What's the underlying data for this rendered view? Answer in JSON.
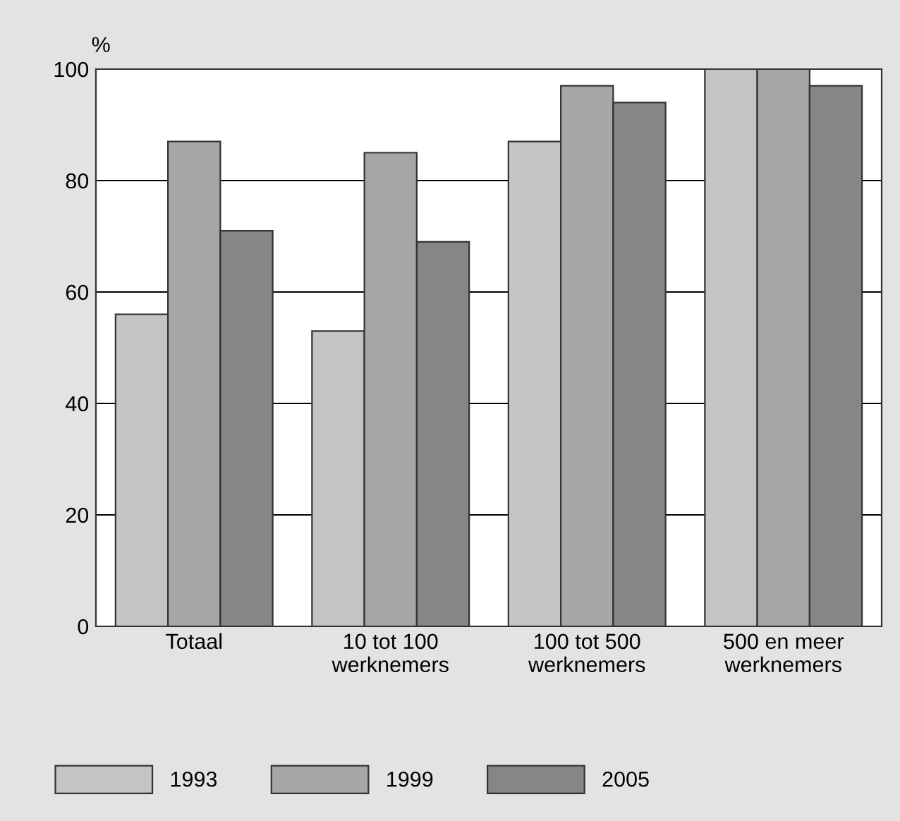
{
  "chart_data": {
    "type": "bar",
    "ylabel": "%",
    "categories": [
      "Totaal",
      "10 tot 100\nwerknemers",
      "100 tot 500\nwerknemers",
      "500 en meer\nwerknemers"
    ],
    "series": [
      {
        "name": "1993",
        "color": "#c4c4c4",
        "values": [
          56,
          53,
          87,
          100
        ]
      },
      {
        "name": "1999",
        "color": "#a6a6a6",
        "values": [
          87,
          85,
          97,
          100
        ]
      },
      {
        "name": "2005",
        "color": "#868686",
        "values": [
          71,
          69,
          94,
          97
        ]
      }
    ],
    "ylim": [
      0,
      100
    ],
    "yticks": [
      0,
      20,
      40,
      60,
      80,
      100
    ],
    "grid": "y",
    "legend": "bottom left"
  }
}
